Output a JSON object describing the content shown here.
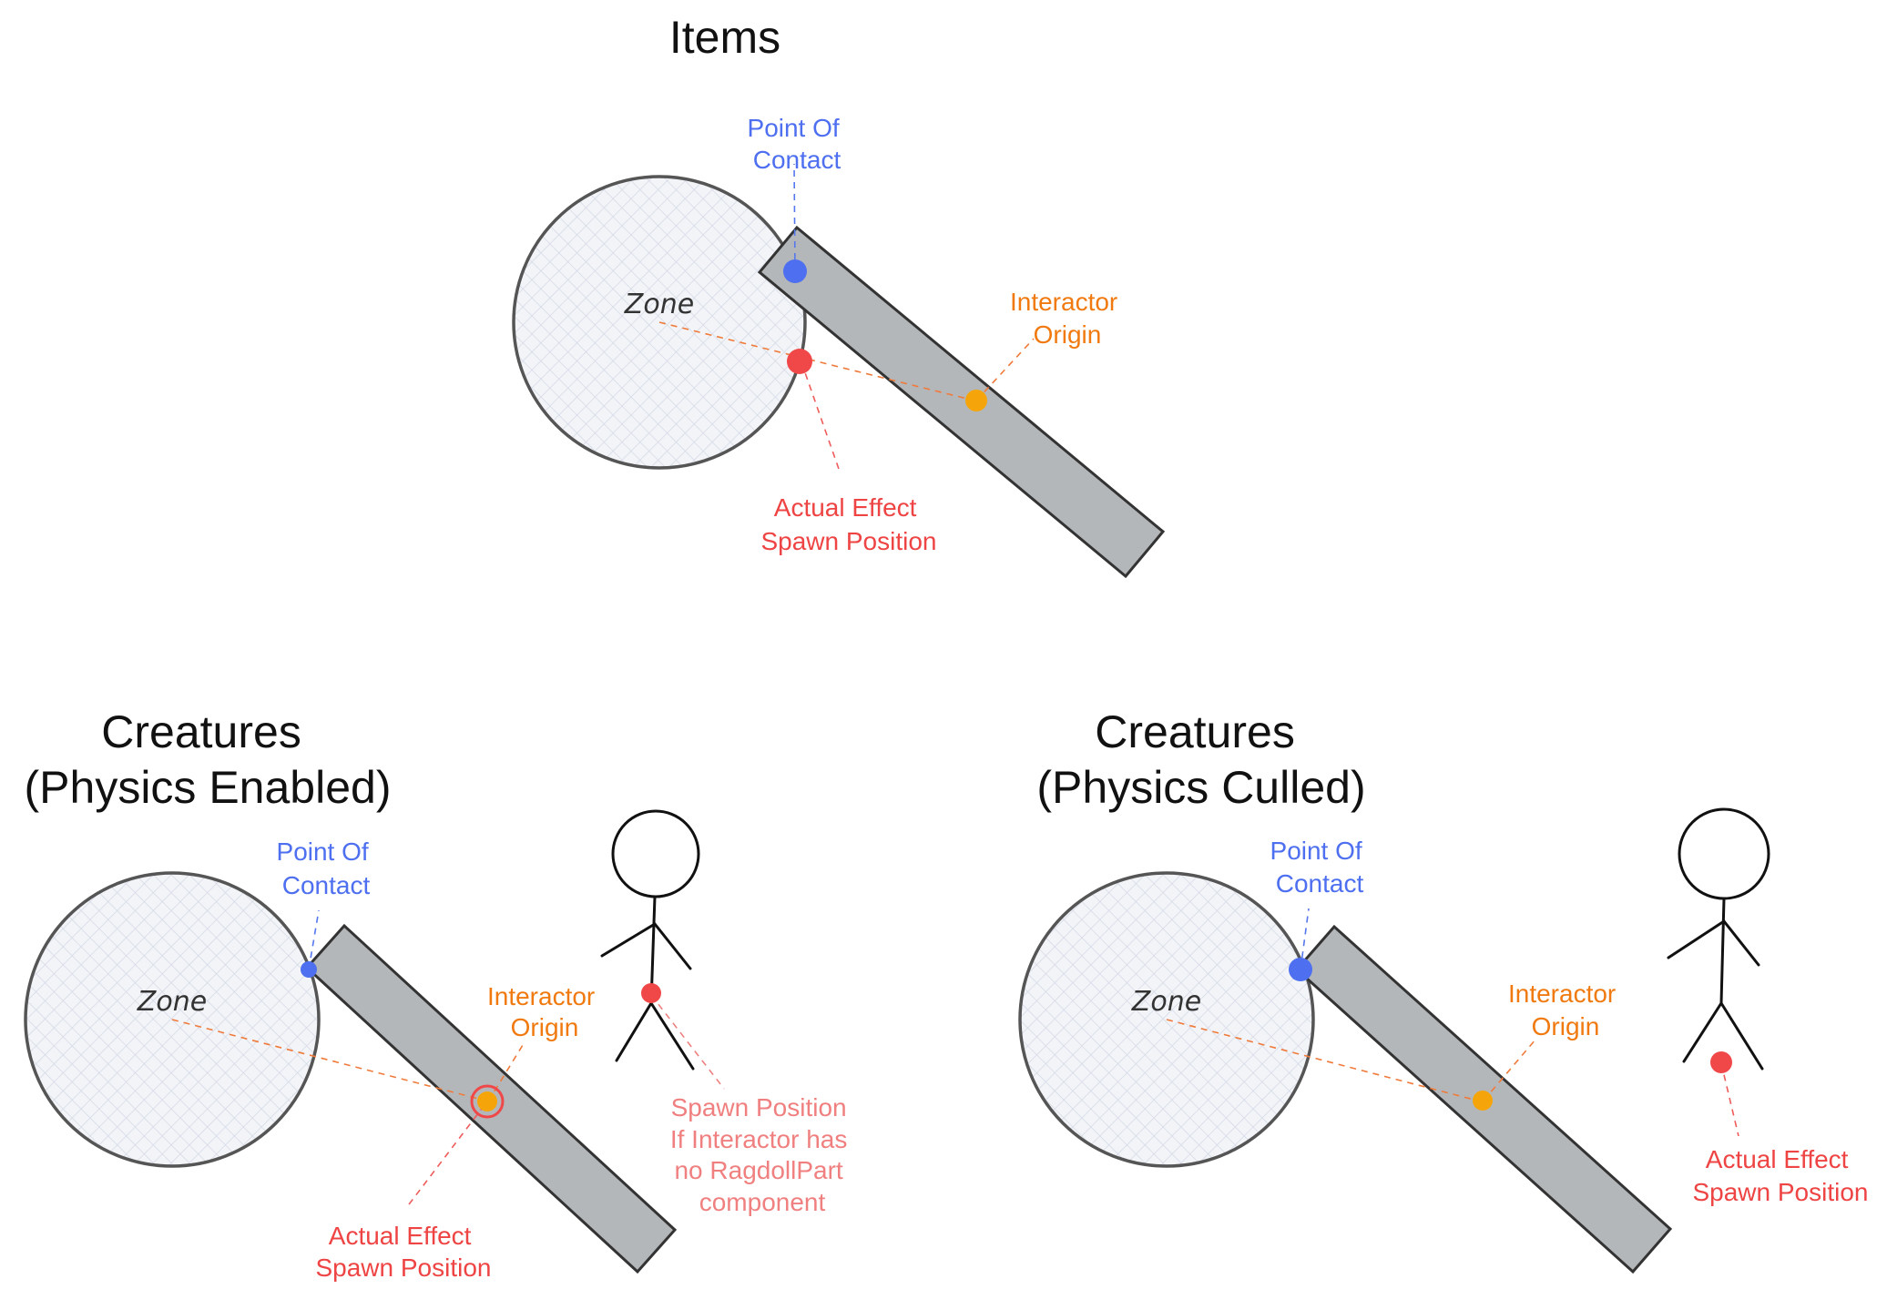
{
  "colors": {
    "contact": "#4d6ff0",
    "interactor": "#f5a50a",
    "effect": "#f04848",
    "effect_light": "#f08080",
    "label_orange": "#f07a10",
    "label_blue": "#4d6ff0",
    "label_red": "#ee4444"
  },
  "items": {
    "title": "Items",
    "zone": "Zone",
    "point_of_contact": [
      "Point Of",
      "Contact"
    ],
    "interactor_origin": [
      "Interactor",
      "Origin"
    ],
    "actual_effect": [
      "Actual Effect",
      "Spawn Position"
    ]
  },
  "physics_enabled": {
    "title": [
      "Creatures",
      "(Physics Enabled)"
    ],
    "zone": "Zone",
    "point_of_contact": [
      "Point Of",
      "Contact"
    ],
    "interactor_origin": [
      "Interactor",
      "Origin"
    ],
    "actual_effect": [
      "Actual Effect",
      "Spawn Position"
    ],
    "spawn_note": [
      "Spawn Position",
      "If Interactor has",
      "no RagdollPart",
      "component"
    ]
  },
  "physics_culled": {
    "title": [
      "Creatures",
      "(Physics Culled)"
    ],
    "zone": "Zone",
    "point_of_contact": [
      "Point Of",
      "Contact"
    ],
    "interactor_origin": [
      "Interactor",
      "Origin"
    ],
    "actual_effect": [
      "Actual Effect",
      "Spawn Position"
    ]
  }
}
